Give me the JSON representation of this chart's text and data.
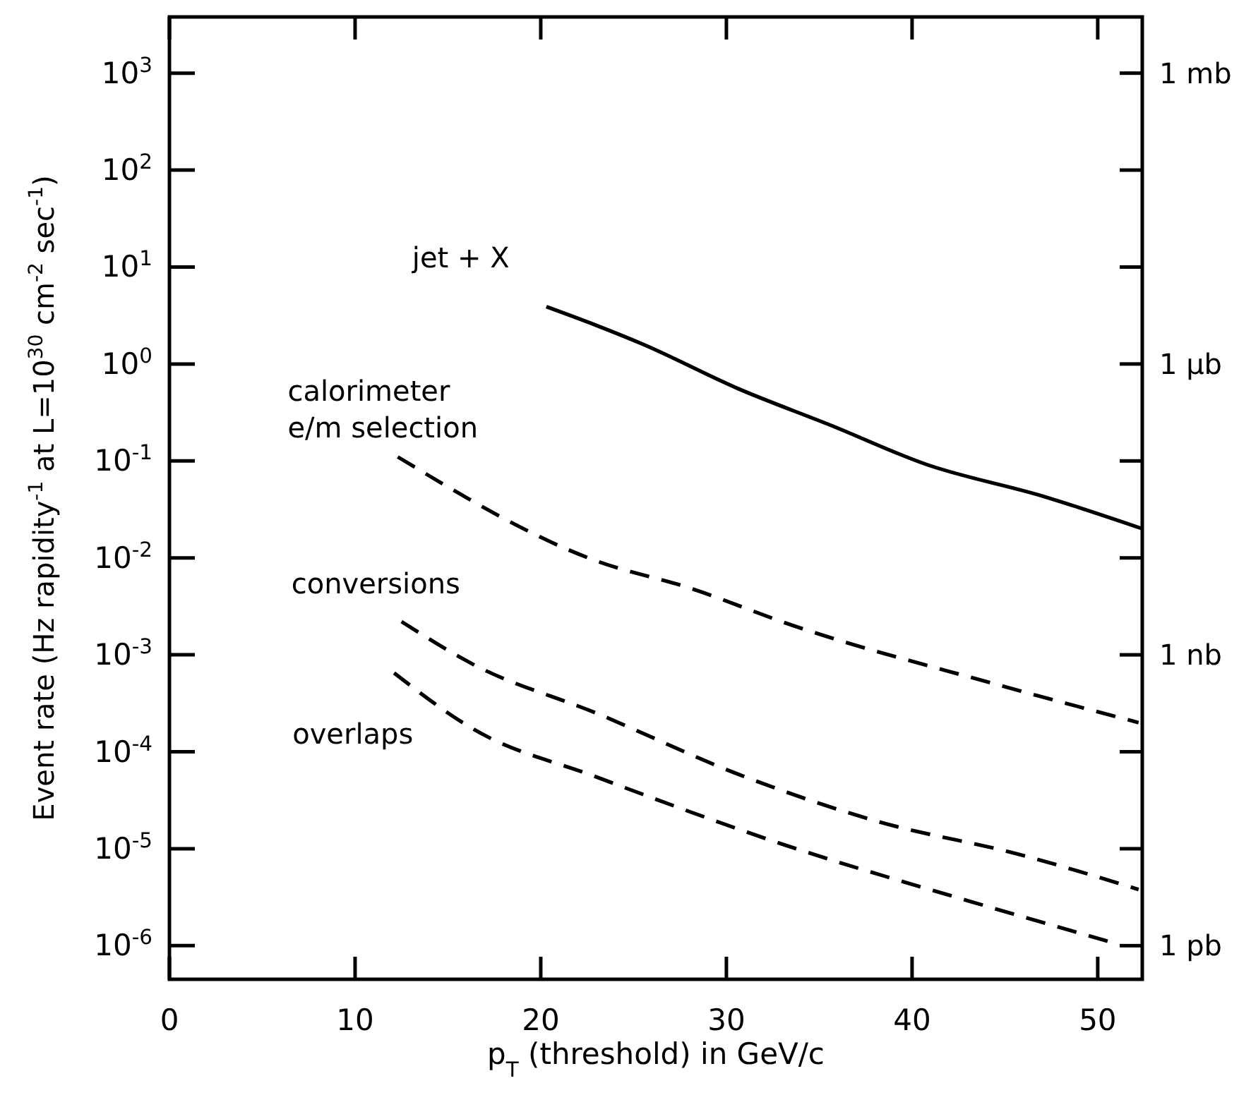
{
  "chart_data": {
    "type": "line",
    "xlabel": "p$_{T}$ (threshold) in GeV/c",
    "ylabel": "Event rate (Hz rapidity$^{-1}$ at L=10$^{30}$ cm$^{-2}$ sec$^{-1}$)",
    "xlim": [
      0,
      52.4
    ],
    "xticks": [
      0,
      10,
      20,
      30,
      40,
      50
    ],
    "ylim": [
      4.5e-07,
      3800
    ],
    "log": true,
    "yticks": [
      {
        "value": 1000,
        "label": "10$^{3}$"
      },
      {
        "value": 100,
        "label": "10$^{2}$"
      },
      {
        "value": 10,
        "label": "10$^{1}$"
      },
      {
        "value": 1,
        "label": "10$^{0}$"
      },
      {
        "value": 0.1,
        "label": "10$^{-1}$"
      },
      {
        "value": 0.01,
        "label": "10$^{-2}$"
      },
      {
        "value": 0.001,
        "label": "10$^{-3}$"
      },
      {
        "value": 0.0001,
        "label": "10$^{-4}$"
      },
      {
        "value": 1e-05,
        "label": "10$^{-5}$"
      },
      {
        "value": 1e-06,
        "label": "10$^{-6}$"
      }
    ],
    "annotations": [
      "1 mb",
      "1 μb",
      "1 nb",
      "1 pb"
    ],
    "grid": false,
    "legend": false,
    "series": [
      {
        "name": "jet + X",
        "color": "#000000",
        "line_style": "solid",
        "x": [
          20.3,
          23,
          25.5,
          30.6,
          35.7,
          40.7,
          47.1,
          52.4
        ],
        "values": [
          3.9,
          2.5,
          1.6,
          0.56,
          0.23,
          0.093,
          0.043,
          0.02
        ]
      },
      {
        "name": "calorimeter\ne/m selection",
        "color": "#000000",
        "line_style": "dashed",
        "x": [
          12.3,
          23,
          28,
          33.6,
          44.3,
          52.2
        ],
        "values": [
          0.11,
          0.0093,
          0.0049,
          0.002,
          0.00051,
          0.0002
        ]
      },
      {
        "name": "conversions",
        "color": "#000000",
        "line_style": "dashed",
        "x": [
          12.5,
          16.4,
          23,
          30.6,
          38.2,
          45.8,
          52.2
        ],
        "values": [
          0.0022,
          0.00079,
          0.00025,
          5.9e-05,
          1.9e-05,
          8.7e-06,
          3.8e-06
        ]
      },
      {
        "name": "overlaps",
        "color": "#000000",
        "line_style": "dashed",
        "x": [
          12.1,
          16.4,
          23,
          33.1,
          43.3,
          51
        ],
        "values": [
          0.00065,
          0.00017,
          5.5e-05,
          1.1e-05,
          2.8e-06,
          1.05e-06
        ]
      }
    ]
  }
}
